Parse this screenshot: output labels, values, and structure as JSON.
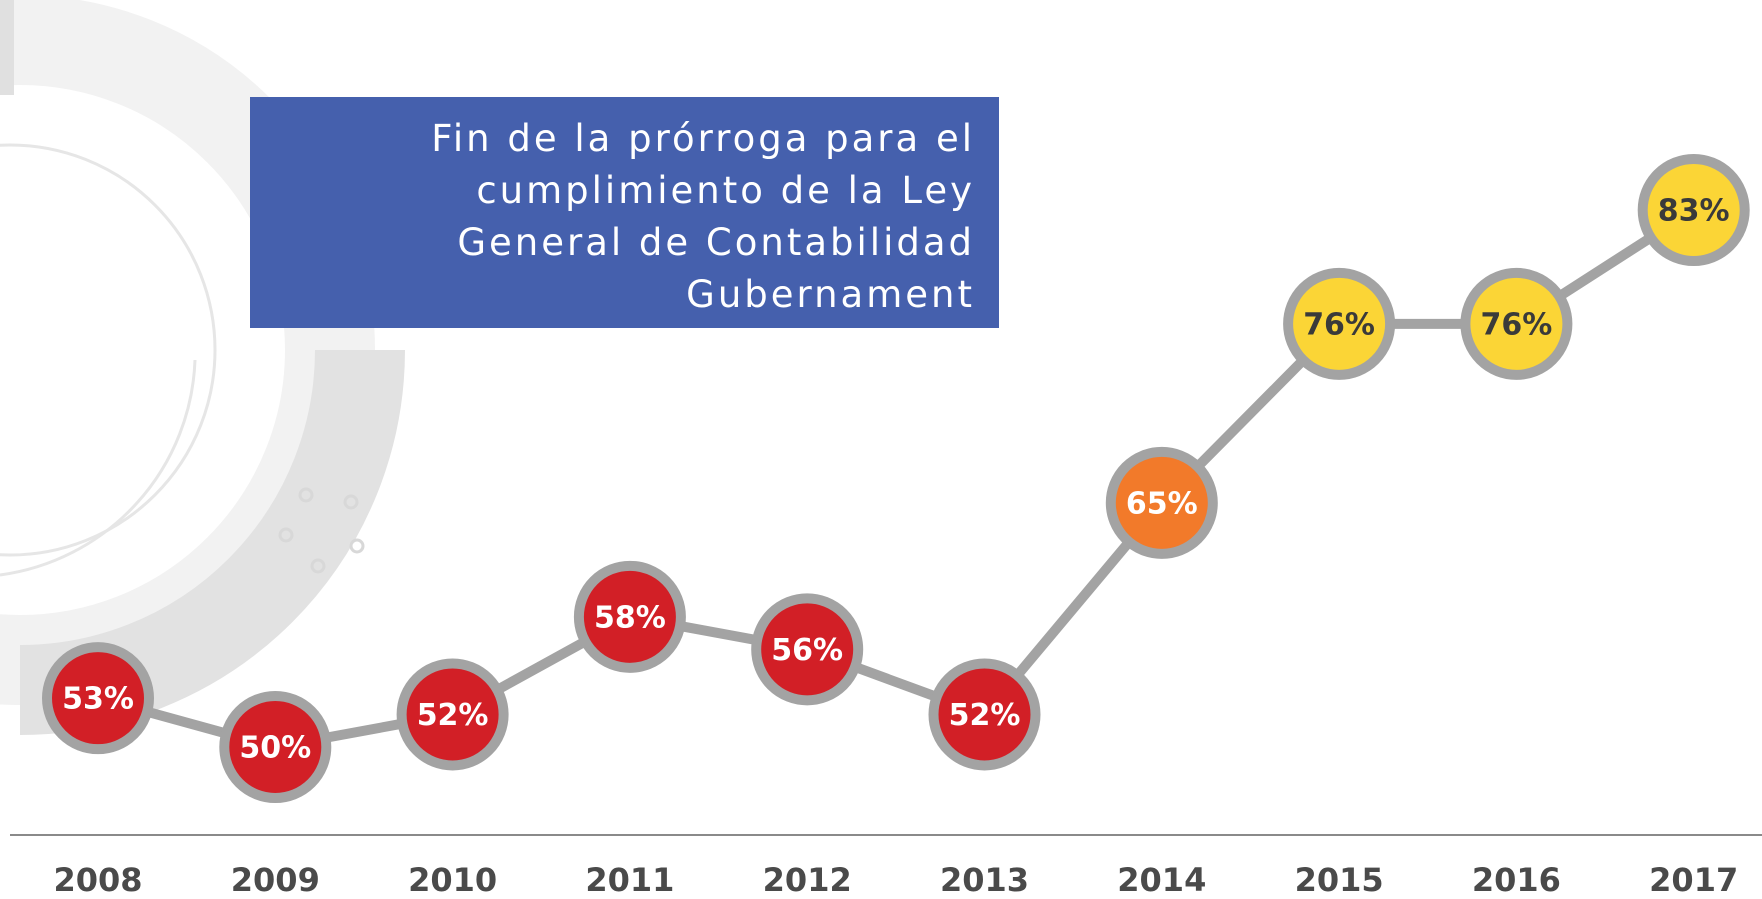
{
  "chart_data": {
    "type": "line",
    "annotation": "Fin de la prórroga para el\ncumplimiento de la Ley\nGeneral de Contabilidad\nGubernament",
    "categories": [
      "2008",
      "2009",
      "2010",
      "2011",
      "2012",
      "2013",
      "2014",
      "2015",
      "2016",
      "2017"
    ],
    "series": [
      {
        "color": "#a3a3a3",
        "values": [
          53,
          50,
          52,
          58,
          56,
          52,
          65,
          76,
          76,
          83
        ],
        "value_labels": [
          "53%",
          "50%",
          "52%",
          "58%",
          "56%",
          "52%",
          "65%",
          "76%",
          "76%",
          "83%"
        ],
        "point_colors": [
          "#d21f26",
          "#d21f26",
          "#d21f26",
          "#d21f26",
          "#d21f26",
          "#d21f26",
          "#f27a2a",
          "#fbd536",
          "#fbd536",
          "#fbd536"
        ]
      }
    ]
  }
}
